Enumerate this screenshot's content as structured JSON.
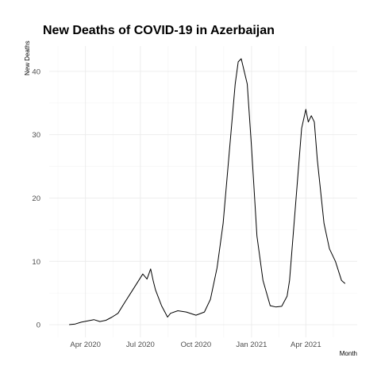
{
  "chart_data": {
    "type": "line",
    "title": "New Deaths of COVID-19 in Azerbaijan",
    "xlabel": "Month",
    "ylabel": "New Deaths",
    "grid": true,
    "xlim": [
      "2020-02-01",
      "2021-06-25"
    ],
    "ylim": [
      -2,
      44
    ],
    "x_ticks": [
      {
        "date": "2020-04-01",
        "label": "Apr 2020"
      },
      {
        "date": "2020-07-01",
        "label": "Jul 2020"
      },
      {
        "date": "2020-10-01",
        "label": "Oct 2020"
      },
      {
        "date": "2021-01-01",
        "label": "Jan 2021"
      },
      {
        "date": "2021-04-01",
        "label": "Apr 2021"
      }
    ],
    "y_ticks": [
      0,
      10,
      20,
      30,
      40
    ],
    "series": [
      {
        "x": [
          "2020-03-05",
          "2020-03-15",
          "2020-03-25",
          "2020-04-05",
          "2020-04-15",
          "2020-04-25",
          "2020-05-05",
          "2020-05-15",
          "2020-05-25",
          "2020-06-05",
          "2020-06-15",
          "2020-06-25",
          "2020-07-05",
          "2020-07-12",
          "2020-07-18",
          "2020-07-22",
          "2020-07-26",
          "2020-08-05",
          "2020-08-15",
          "2020-08-20",
          "2020-09-01",
          "2020-09-15",
          "2020-10-01",
          "2020-10-15",
          "2020-10-25",
          "2020-11-05",
          "2020-11-15",
          "2020-11-25",
          "2020-12-05",
          "2020-12-10",
          "2020-12-15",
          "2020-12-20",
          "2020-12-25",
          "2021-01-01",
          "2021-01-10",
          "2021-01-20",
          "2021-02-01",
          "2021-02-10",
          "2021-02-20",
          "2021-03-01",
          "2021-03-05",
          "2021-03-15",
          "2021-03-25",
          "2021-04-01",
          "2021-04-05",
          "2021-04-10",
          "2021-04-15",
          "2021-04-20",
          "2021-05-01",
          "2021-05-10",
          "2021-05-20",
          "2021-05-30",
          "2021-06-05"
        ],
        "y": [
          0,
          0.1,
          0.4,
          0.6,
          0.8,
          0.5,
          0.7,
          1.2,
          1.8,
          3.5,
          5,
          6.5,
          8,
          7.2,
          8.8,
          7,
          5.5,
          3,
          1.2,
          1.8,
          2.2,
          2,
          1.5,
          2,
          4,
          9,
          16,
          27,
          38,
          41.5,
          42,
          40,
          38,
          28,
          14,
          7,
          3,
          2.8,
          2.9,
          4.5,
          7,
          19,
          31,
          34,
          32,
          33,
          32,
          26,
          16,
          12,
          10,
          7,
          6.5
        ]
      }
    ]
  }
}
